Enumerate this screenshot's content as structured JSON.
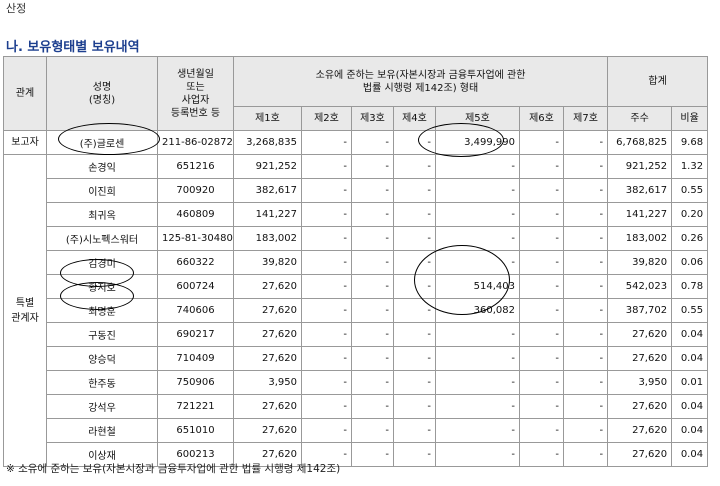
{
  "page": {
    "top_text": "산정",
    "section_title": "나. 보유형태별 보유내역",
    "footnote": "※ 소유에 준하는 보유(자본시장과 금융투자업에 관한 법률 시행령 제142조)"
  },
  "headers": {
    "relation": "관계",
    "name_line1": "성명",
    "name_line2": "(명칭)",
    "id_line1": "생년월일",
    "id_line2": "또는",
    "id_line3": "사업자",
    "id_line4": "등록번호 등",
    "group_line1": "소유에 준하는 보유(자본시장과 금융투자업에 관한",
    "group_line2": "법률 시행령 제142조) 형태",
    "total": "합계",
    "cols": [
      "제1호",
      "제2호",
      "제3호",
      "제4호",
      "제5호",
      "제6호",
      "제7호"
    ],
    "shares": "주수",
    "ratio": "비율"
  },
  "relations": {
    "reporter": "보고자",
    "special_line1": "특별",
    "special_line2": "관계자"
  },
  "rows": [
    {
      "name": "(주)글로센",
      "id": "211-86-02872",
      "c1": "3,268,835",
      "c2": "-",
      "c3": "-",
      "c4": "-",
      "c5": "3,499,990",
      "c6": "-",
      "c7": "-",
      "shares": "6,768,825",
      "ratio": "9.68"
    },
    {
      "name": "손경익",
      "id": "651216",
      "c1": "921,252",
      "c2": "-",
      "c3": "-",
      "c4": "-",
      "c5": "-",
      "c6": "-",
      "c7": "-",
      "shares": "921,252",
      "ratio": "1.32"
    },
    {
      "name": "이진희",
      "id": "700920",
      "c1": "382,617",
      "c2": "-",
      "c3": "-",
      "c4": "-",
      "c5": "-",
      "c6": "-",
      "c7": "-",
      "shares": "382,617",
      "ratio": "0.55"
    },
    {
      "name": "최귀옥",
      "id": "460809",
      "c1": "141,227",
      "c2": "-",
      "c3": "-",
      "c4": "-",
      "c5": "-",
      "c6": "-",
      "c7": "-",
      "shares": "141,227",
      "ratio": "0.20"
    },
    {
      "name": "(주)시노펙스워터",
      "id": "125-81-30480",
      "c1": "183,002",
      "c2": "-",
      "c3": "-",
      "c4": "-",
      "c5": "-",
      "c6": "-",
      "c7": "-",
      "shares": "183,002",
      "ratio": "0.26"
    },
    {
      "name": "김경미",
      "id": "660322",
      "c1": "39,820",
      "c2": "-",
      "c3": "-",
      "c4": "-",
      "c5": "-",
      "c6": "-",
      "c7": "-",
      "shares": "39,820",
      "ratio": "0.06"
    },
    {
      "name": "황지호",
      "id": "600724",
      "c1": "27,620",
      "c2": "-",
      "c3": "-",
      "c4": "-",
      "c5": "514,403",
      "c6": "-",
      "c7": "-",
      "shares": "542,023",
      "ratio": "0.78"
    },
    {
      "name": "최명훈",
      "id": "740606",
      "c1": "27,620",
      "c2": "-",
      "c3": "-",
      "c4": "-",
      "c5": "360,082",
      "c6": "-",
      "c7": "-",
      "shares": "387,702",
      "ratio": "0.55"
    },
    {
      "name": "구동진",
      "id": "690217",
      "c1": "27,620",
      "c2": "-",
      "c3": "-",
      "c4": "-",
      "c5": "-",
      "c6": "-",
      "c7": "-",
      "shares": "27,620",
      "ratio": "0.04"
    },
    {
      "name": "양승덕",
      "id": "710409",
      "c1": "27,620",
      "c2": "-",
      "c3": "-",
      "c4": "-",
      "c5": "-",
      "c6": "-",
      "c7": "-",
      "shares": "27,620",
      "ratio": "0.04"
    },
    {
      "name": "한주동",
      "id": "750906",
      "c1": "3,950",
      "c2": "-",
      "c3": "-",
      "c4": "-",
      "c5": "-",
      "c6": "-",
      "c7": "-",
      "shares": "3,950",
      "ratio": "0.01"
    },
    {
      "name": "강석우",
      "id": "721221",
      "c1": "27,620",
      "c2": "-",
      "c3": "-",
      "c4": "-",
      "c5": "-",
      "c6": "-",
      "c7": "-",
      "shares": "27,620",
      "ratio": "0.04"
    },
    {
      "name": "라현철",
      "id": "651010",
      "c1": "27,620",
      "c2": "-",
      "c3": "-",
      "c4": "-",
      "c5": "-",
      "c6": "-",
      "c7": "-",
      "shares": "27,620",
      "ratio": "0.04"
    },
    {
      "name": "이상재",
      "id": "600213",
      "c1": "27,620",
      "c2": "-",
      "c3": "-",
      "c4": "-",
      "c5": "-",
      "c6": "-",
      "c7": "-",
      "shares": "27,620",
      "ratio": "0.04"
    }
  ]
}
